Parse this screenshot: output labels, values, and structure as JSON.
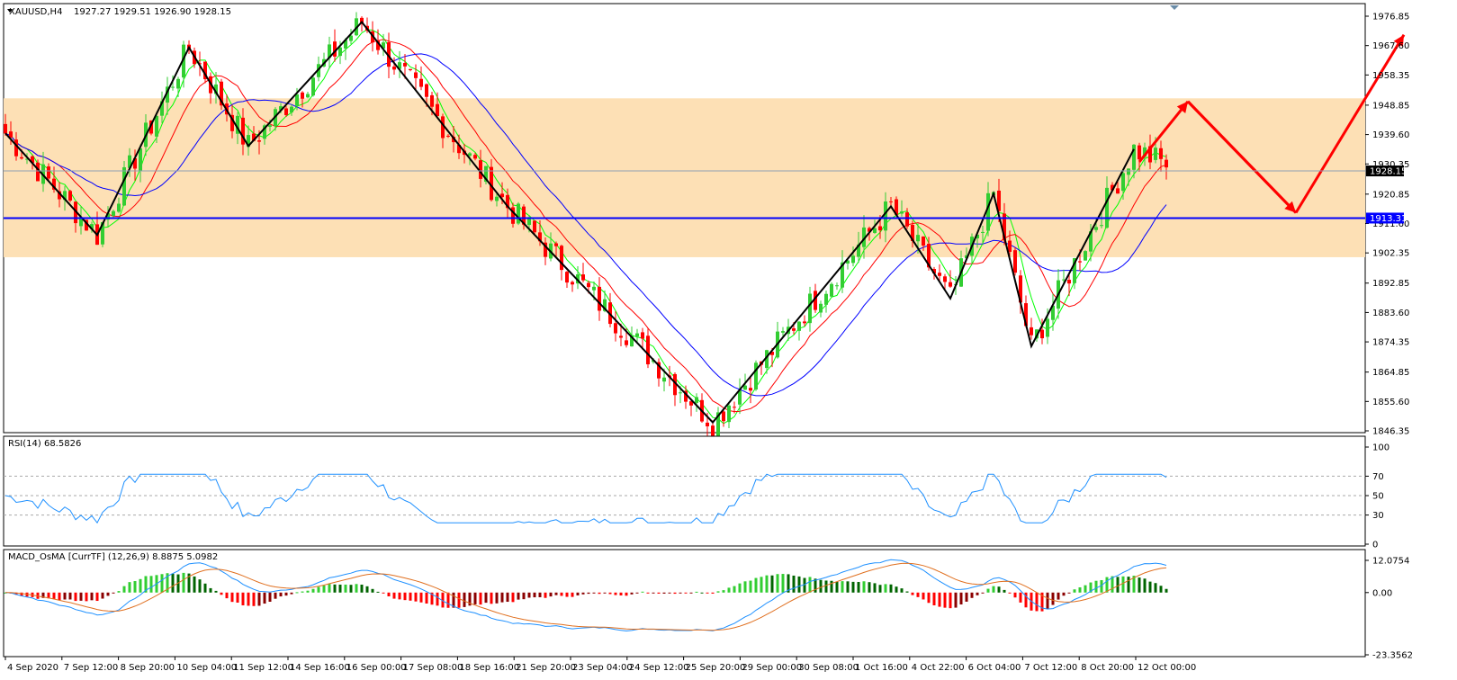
{
  "header": {
    "symbol": "XAUUSD,H4",
    "ohlc": "1927.27 1929.51 1926.90 1928.15"
  },
  "colors": {
    "bull": "#32cd32",
    "bear": "#ff0000",
    "zone": "#fde0b5",
    "support_line": "#0000ff",
    "ma_fast": "#00ff00",
    "ma_mid": "#ff0000",
    "ma_slow": "#0000ff",
    "zigzag": "#000000",
    "forecast": "#ff0000",
    "rsi_line": "#1e90ff",
    "macd_line": "#1e90ff",
    "signal_line": "#e07020",
    "hist_up_strong": "#32cd32",
    "hist_up_weak": "#006400",
    "hist_down_strong": "#ff0000",
    "hist_down_weak": "#8b0000"
  },
  "chart_data": {
    "type": "candlestick",
    "instrument": "XAUUSD",
    "timeframe": "H4",
    "ylim": [
      1846.35,
      1976.85
    ],
    "y_ticks": [
      "1976.85",
      "1967.60",
      "1958.35",
      "1948.85",
      "1939.60",
      "1930.35",
      "1920.85",
      "1911.60",
      "1902.35",
      "1892.85",
      "1883.60",
      "1874.35",
      "1864.85",
      "1855.60",
      "1846.35"
    ],
    "current_price": "1928.15",
    "support_level": "1913.31",
    "resistance_zone": [
      1901.0,
      1951.0
    ],
    "x_tick_labels": [
      "4 Sep 2020",
      "7 Sep 12:00",
      "8 Sep 20:00",
      "10 Sep 04:00",
      "11 Sep 12:00",
      "14 Sep 16:00",
      "16 Sep 00:00",
      "17 Sep 08:00",
      "18 Sep 16:00",
      "21 Sep 20:00",
      "23 Sep 04:00",
      "24 Sep 12:00",
      "25 Sep 20:00",
      "29 Sep 00:00",
      "30 Sep 08:00",
      "1 Oct 16:00",
      "4 Oct 22:00",
      "6 Oct 04:00",
      "7 Oct 12:00",
      "8 Oct 20:00",
      "12 Oct 00:00"
    ],
    "zigzag_points": [
      [
        0,
        1940
      ],
      [
        17,
        1908
      ],
      [
        34,
        1967
      ],
      [
        45,
        1936
      ],
      [
        66,
        1975
      ],
      [
        93,
        1917
      ],
      [
        131,
        1849
      ],
      [
        164,
        1917
      ],
      [
        175,
        1888
      ],
      [
        183,
        1921
      ],
      [
        190,
        1873
      ],
      [
        209,
        1935
      ]
    ],
    "forecast_path": [
      [
        210,
        1931
      ],
      [
        219,
        1950
      ],
      [
        239,
        1915
      ],
      [
        259,
        1971
      ]
    ],
    "rsi": {
      "label": "RSI(14) 68.5826",
      "ylim": [
        0,
        100
      ],
      "ticks": [
        "100",
        "70",
        "50",
        "30",
        "0"
      ],
      "guide_levels": [
        70,
        50,
        30
      ]
    },
    "macd": {
      "label": "MACD_OsMA [CurrTF] (12,26,9) 8.8875 5.0982",
      "ylim": [
        -23.3562,
        12.0754
      ],
      "ticks": [
        "12.0754",
        "0.00",
        "-23.3562"
      ]
    }
  }
}
